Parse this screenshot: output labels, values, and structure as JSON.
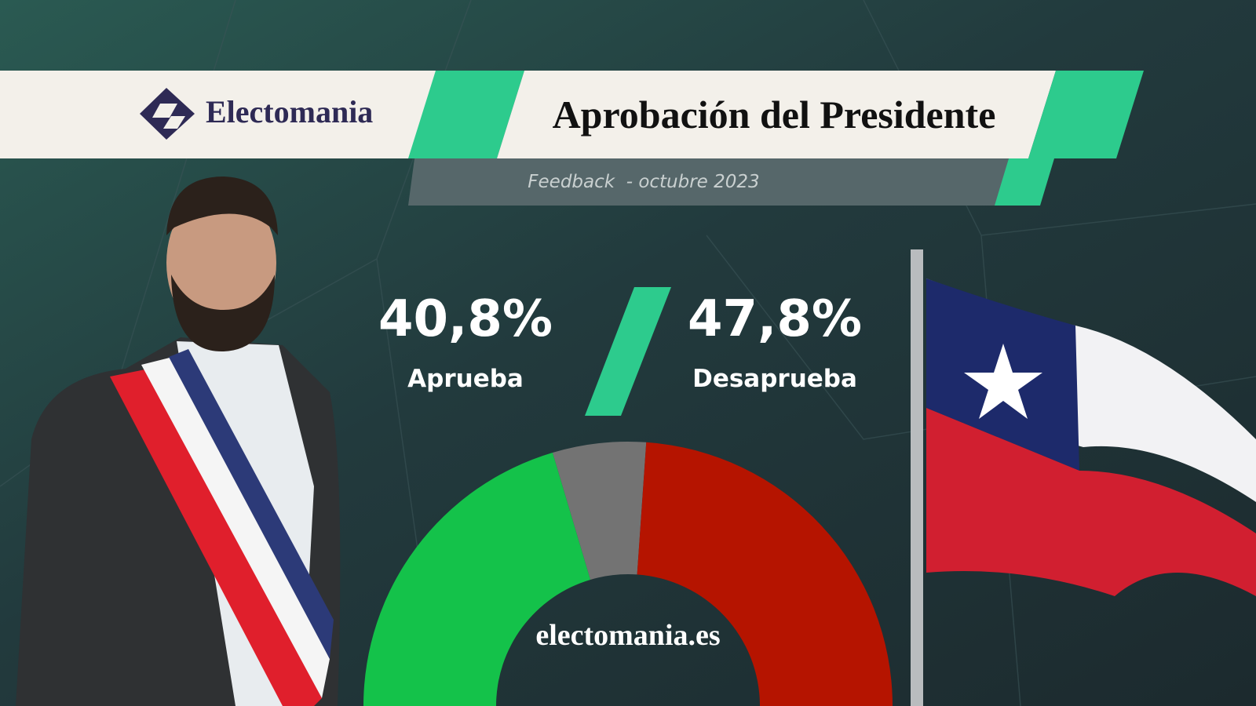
{
  "brand": "Electomania",
  "chart_data": {
    "type": "donut",
    "title": "Aprobación del Presidente",
    "subtitle": "Feedback  - octubre 2023",
    "categories": [
      "Aprueba",
      null,
      "Desaprueba"
    ],
    "values": [
      40.8,
      11.4,
      47.8
    ],
    "value_labels": [
      "40,8%",
      null,
      "47,8%"
    ],
    "colors": [
      "#14c24a",
      "#737373",
      "#b51400"
    ],
    "center_text": "electomania.es"
  }
}
